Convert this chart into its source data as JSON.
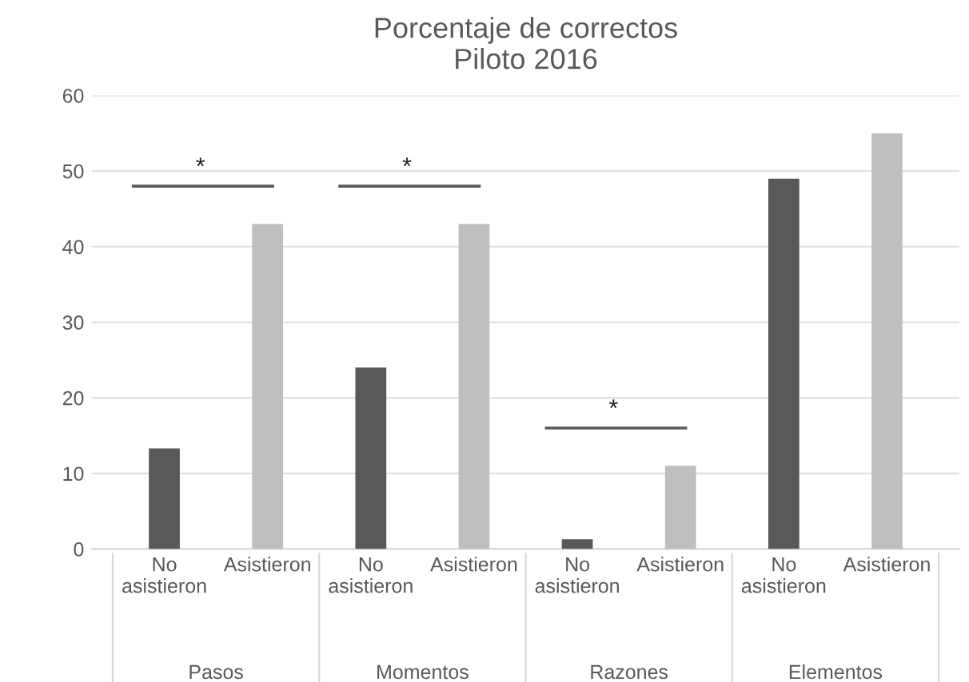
{
  "chart_data": {
    "type": "bar",
    "title": "Porcentaje de correctos\nPiloto 2016",
    "categories": [
      "No\nasistieron",
      "Asistieron",
      "No\nasistieron",
      "Asistieron",
      "No\nasistieron",
      "Asistieron",
      "No\nasistieron",
      "Asistieron"
    ],
    "values": [
      13.3,
      43,
      24,
      43,
      1.3,
      11,
      49,
      55
    ],
    "colors": [
      "#595959",
      "#bfbfbf",
      "#595959",
      "#bfbfbf",
      "#595959",
      "#bfbfbf",
      "#595959",
      "#bfbfbf"
    ],
    "ylim": [
      0,
      60
    ],
    "yticks": [
      0,
      10,
      20,
      30,
      40,
      50,
      60
    ],
    "grid": "y",
    "annotations": [
      "Pasos",
      "Momentos",
      "Razones",
      "Elementos",
      "*",
      "*",
      "*"
    ]
  }
}
